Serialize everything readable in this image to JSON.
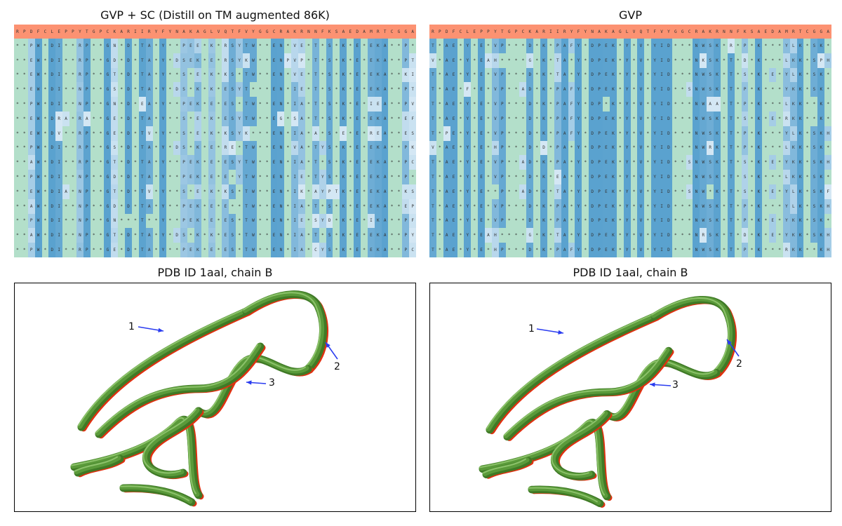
{
  "colors": {
    "header": "#fc9272",
    "match": "#b3dfca",
    "blue_dark": "#5aa2cf",
    "blue_light": "#f4f9fe",
    "ribbon": "#5a9a3a",
    "highlight": "#e03010",
    "arrow": "#2a3cf0"
  },
  "native_sequence": "RPDFCLEPPYTGPCKARIIRYFYNAKAGLVQTFVYGGCRAKRNNFKSAEDAMRTCGGA",
  "panels": [
    {
      "title": "GVP + SC (Distill on TM augmented 86K)",
      "rows": [
        "**PW*DI**RP**GN*D*TA*Y**PEE*K*RSYTW**EN*VE*T*S*K*E*EKA**P*",
        "**EW*DI**RP**GD*D*TA*Y*DSEK*E*RSYKW**ENPVP*T*S*K*E*EKA**PT",
        "**EW*DI**RP**GT*D*TA*Y**S*E*K*KS*TW**EN*VE*T*S*K*E*EKA**KI",
        "**EW*DI**NP**GS*D*TA*Y*DS*K*K*ESYT***EN*IE*T*S*K*E*EKA**PT",
        "**PW*DI**NP**GN*D*EA*Y**PEK*E*ES*TW**EN*IA*T*S*K*E*IEA**PV",
        "**EW*DRA*RA**GE*D*TA*Y**S*E*K*ESYTW**EG*SA*T*S*K*E*EKA**EF",
        "**EW*DV**RP**GE*D*TV*Y**S*E*K*KSYK***EN*IA*A*S*E*E*REA**ES",
        "**PW*DI**RP**GS*D*TA*Y*DS*K*E*RE*TW**EN*VA*TYS*K*E*EKA**PK",
        "**AW*DI**RP**GT*D*TA*Y**PEK*E*ESYTW**EN*IA*T*S*K*E*EKA**PC",
        "**PW*DI**NP**GD*D*TA*Y**PEK*E*E*YTW**EN*IE*TYS*K*E*EKA**P*",
        "**EW*DIA*NP**GT*D*TV*Y**S*E*K*KS*TW**EN*IK*AYPTK*E*EKA**KS",
        "**AW*DI**NP**GD*D*TA*Y**PEK*E*E**TW**EN*IA*T*S*K*E*EKA**EP",
        "**PW*DI**NP**GN***T**Y**PEK*E*ES*TW**EN*IE*SYD*K*E*IKA**PF",
        "**AW*DI**NP**GT*D*TA*Y*DS*K*K*ES*TW**EN*IA*T*S*K*E*EKA**PY",
        "**PW*DI**RP**GE*D*TA*Y**PEK*E*ES*TW**EN*IA*CYS*K*E*EKA**PC"
      ],
      "structure_title": "PDB ID 1aal, chain B",
      "annotations": [
        "1",
        "2",
        "3"
      ]
    },
    {
      "title": "GVP",
      "rows": [
        "T*AE*Y*E*VP***D*K*PAFY*DPEK*Y*V*YID***NWSK*R*P*K***YLK*SK*",
        "V*AE*Y*EAH****G*K*TA*Y*DPEK*Y*V*YID***NKSK*T*D*K***LKK*SPH",
        "T*AE*Y*E*VP***D*K*TA*Y*DPEK*Y*V*YID***NWSK*T*S*K*E*YLK*SK*",
        "T*AE*F*E*VP**AD*K*PAFY*DPEK*Y*V*YID**SNWSK*T*P*K***YKK*SK*",
        "T*AE*Y*E*VP***D*K*PAFY*DP*K*Y*V*YID***NWAA*T*P*K***LKK**K*",
        "T*AE*Y*E*VP***D*K*PAFY*DPEK*Y*V*YID***NWSK*T*S*K*E*RKK**K*",
        "T*PE*Y*E*VP***D*K*PAFY*DPEK*Y*V*YID***NWSK*T*P*K***YLK*SKH",
        "V*AE*Y*E*HP***D*D*PA*Y*DPEK*Y*V*YID***NWRK*T*P*K***LKK*SK*",
        "T*AE*Y*E*VP**AD*K*PA*Y*DPEK*Y*V*YID**SNWSK*T*S*K*E*YKK*SKH",
        "T*AE*Y*E*VP***D*K*EA*Y*DPEK*Y*V*YID***NWSK*T*S*K***LKK*SK*",
        "T*AE*Y*E**P**AD*K*TA*Y*DPEK*Y*V*YID**SNW*K*T*S*K*E*YLK*SKF",
        "T*AE*Y*E*VP***D*K*PA*Y*DPEK*Y*V*YID***NWSK*T*P*K***YLK*SKH",
        "T*AE*Y*E*VP***D*K*PA*Y*DPEK*Y*V*YID***NWSK*T*P*K*E*YKK*SK*",
        "T*AE*Y*EAH****G*K*TA*Y*DPEK*Y*V*YID***NRSK*T*D*K*E*YKK*SKH",
        "T*AE*Y*E*HP***D*K*PAFY*DPEK*Y*V*YID***NWSK*T*P*K***RKK**KH"
      ],
      "structure_title": "PDB ID 1aal, chain B",
      "annotations": [
        "1",
        "2",
        "3"
      ]
    }
  ]
}
